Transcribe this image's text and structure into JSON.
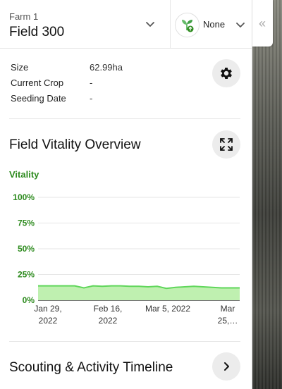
{
  "header": {
    "farm": "Farm 1",
    "field": "Field 300",
    "crop_selector": {
      "value": "None",
      "icon": "crop-plant-icon"
    }
  },
  "info": {
    "rows": [
      {
        "key": "Size",
        "value": "62.99ha"
      },
      {
        "key": "Current Crop",
        "value": "-"
      },
      {
        "key": "Seeding Date",
        "value": "-"
      }
    ]
  },
  "vitality_section": {
    "title": "Field Vitality Overview",
    "label": "Vitality"
  },
  "timeline_section": {
    "title": "Scouting & Activity Timeline"
  },
  "colors": {
    "accent_green": "#2e8b1f",
    "area_fill": "#bff0b0",
    "line": "#5fd65a"
  },
  "chart_data": {
    "type": "area",
    "yticks": [
      "100%",
      "75%",
      "50%",
      "25%",
      "0%"
    ],
    "ylim": [
      0,
      100
    ],
    "xticks": [
      {
        "l1": "Jan 29,",
        "l2": "2022"
      },
      {
        "l1": "Feb 16,",
        "l2": "2022"
      },
      {
        "l1": "Mar 5, 2022",
        "l2": ""
      },
      {
        "l1": "Mar",
        "l2": "25,…"
      }
    ],
    "series": [
      {
        "values": [
          14,
          14,
          14,
          14,
          14,
          12,
          14,
          13.5,
          14,
          14,
          13.5,
          13.5,
          13,
          13.5,
          11.5,
          12.5,
          13,
          13.5,
          13,
          12.5,
          12,
          12,
          12
        ]
      }
    ],
    "grid": true
  }
}
